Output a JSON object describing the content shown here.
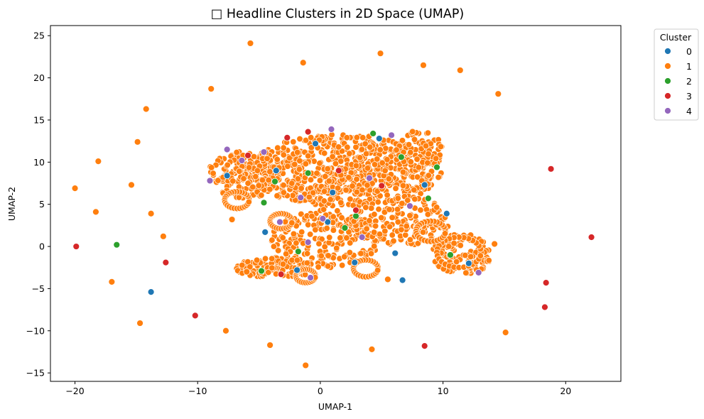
{
  "chart_data": {
    "type": "scatter",
    "title": "□ Headline Clusters in 2D Space (UMAP)",
    "xlabel": "UMAP-1",
    "ylabel": "UMAP-2",
    "xlim": [
      -22,
      24.5
    ],
    "ylim": [
      -16,
      26.2
    ],
    "xticks": [
      -20,
      -10,
      0,
      10,
      20
    ],
    "yticks": [
      -15,
      -10,
      -5,
      0,
      5,
      10,
      15,
      20,
      25
    ],
    "grid": false,
    "legend": {
      "title": "Cluster",
      "position": "outside-top-right"
    },
    "colors": {
      "0": "#1f77b4",
      "1": "#ff7f0e",
      "2": "#2ca02c",
      "3": "#d62728",
      "4": "#9467bd"
    },
    "series": [
      {
        "name": "0",
        "points": [
          [
            -13.8,
            -5.4
          ],
          [
            -7.6,
            8.4
          ],
          [
            -0.4,
            12.2
          ],
          [
            1.0,
            6.4
          ],
          [
            6.1,
            -0.8
          ],
          [
            10.3,
            3.9
          ],
          [
            -3.6,
            9.0
          ],
          [
            2.8,
            -1.9
          ],
          [
            8.5,
            7.3
          ],
          [
            -1.9,
            -2.8
          ],
          [
            4.8,
            12.8
          ],
          [
            12.1,
            -2.0
          ],
          [
            -4.5,
            1.7
          ],
          [
            0.6,
            2.9
          ],
          [
            6.7,
            -4.0
          ]
        ]
      },
      {
        "name": "1",
        "points": [
          [
            -5.7,
            24.1
          ],
          [
            4.9,
            22.9
          ],
          [
            -1.4,
            21.8
          ],
          [
            8.4,
            21.5
          ],
          [
            11.4,
            20.9
          ],
          [
            -8.9,
            18.7
          ],
          [
            14.5,
            18.1
          ],
          [
            -14.2,
            16.3
          ],
          [
            -14.9,
            12.4
          ],
          [
            -18.1,
            10.1
          ],
          [
            -15.4,
            7.3
          ],
          [
            -20.0,
            6.9
          ],
          [
            -18.3,
            4.1
          ],
          [
            -13.8,
            3.9
          ],
          [
            -12.8,
            1.2
          ],
          [
            -17.0,
            -4.2
          ],
          [
            -14.7,
            -9.1
          ],
          [
            -7.7,
            -10.0
          ],
          [
            -4.1,
            -11.7
          ],
          [
            -1.2,
            -14.1
          ],
          [
            4.2,
            -12.2
          ],
          [
            15.1,
            -10.2
          ],
          [
            5.5,
            -3.9
          ],
          [
            -7.2,
            3.2
          ],
          [
            -6.0,
            -3.0
          ],
          [
            14.2,
            0.3
          ]
        ]
      },
      {
        "name": "2",
        "points": [
          [
            -16.6,
            0.2
          ],
          [
            -4.6,
            5.2
          ],
          [
            -3.7,
            7.7
          ],
          [
            9.5,
            9.4
          ],
          [
            8.8,
            5.7
          ],
          [
            6.6,
            10.6
          ],
          [
            2.0,
            2.2
          ],
          [
            -4.8,
            -2.9
          ],
          [
            2.9,
            3.6
          ],
          [
            -1.0,
            8.7
          ],
          [
            4.3,
            13.4
          ],
          [
            -1.8,
            -0.6
          ],
          [
            10.6,
            -1.0
          ]
        ]
      },
      {
        "name": "3",
        "points": [
          [
            -19.9,
            0.0
          ],
          [
            -12.6,
            -1.9
          ],
          [
            -10.2,
            -8.2
          ],
          [
            8.5,
            -11.8
          ],
          [
            18.3,
            -7.2
          ],
          [
            18.4,
            -4.3
          ],
          [
            18.8,
            9.2
          ],
          [
            22.1,
            1.1
          ],
          [
            -2.7,
            12.9
          ],
          [
            1.5,
            9.0
          ],
          [
            -1.0,
            13.6
          ],
          [
            2.9,
            4.3
          ],
          [
            -3.2,
            -3.3
          ],
          [
            5.0,
            7.2
          ],
          [
            -5.9,
            10.8
          ]
        ]
      },
      {
        "name": "4",
        "points": [
          [
            -9.0,
            7.8
          ],
          [
            -6.4,
            10.2
          ],
          [
            -7.6,
            11.5
          ],
          [
            3.4,
            1.1
          ],
          [
            -1.0,
            0.5
          ],
          [
            -1.6,
            5.8
          ],
          [
            0.2,
            3.3
          ],
          [
            -4.6,
            11.2
          ],
          [
            5.8,
            13.2
          ],
          [
            12.9,
            -3.1
          ],
          [
            7.3,
            4.8
          ],
          [
            -3.3,
            2.9
          ],
          [
            -0.8,
            -3.7
          ],
          [
            4.0,
            8.1
          ],
          [
            0.9,
            13.9
          ]
        ]
      }
    ]
  }
}
